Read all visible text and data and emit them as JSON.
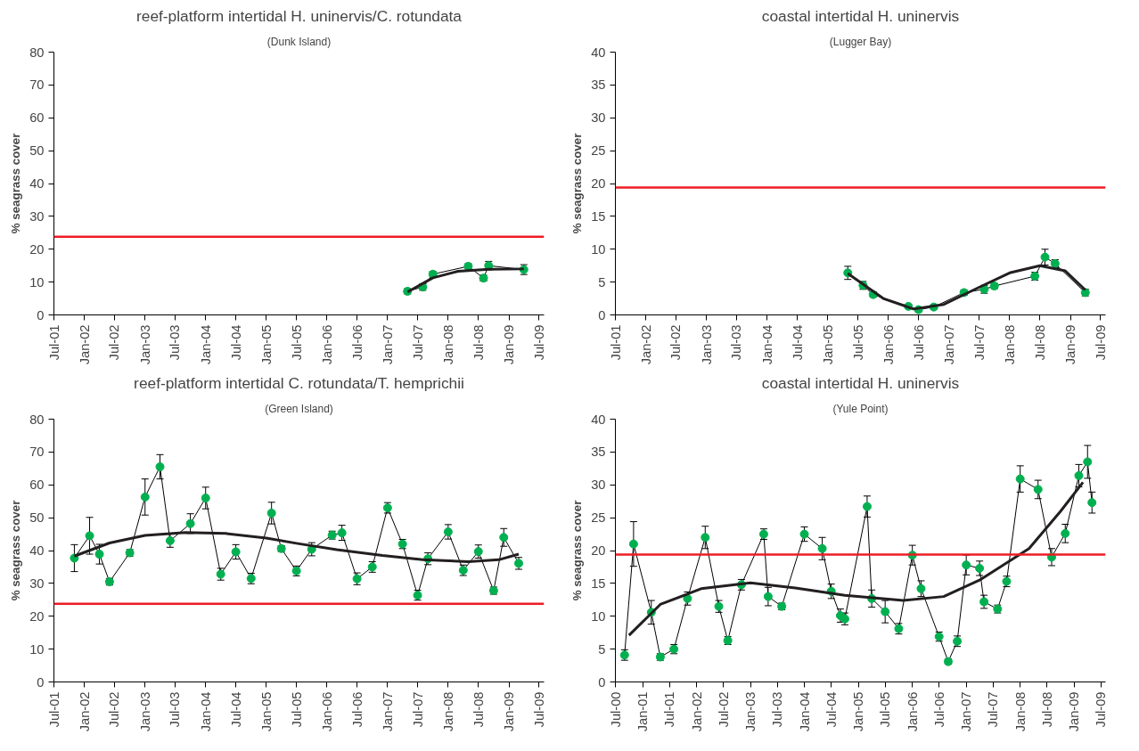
{
  "chart_data": [
    {
      "type": "line",
      "title": "reef-platform intertidal H. uninervis/C. rotundata",
      "subtitle": "(Dunk Island)",
      "ylabel": "% seagrass cover",
      "xlim": [
        "2001-07",
        "2009-08"
      ],
      "ylim": [
        0,
        80
      ],
      "yticks": [
        0,
        10,
        20,
        30,
        40,
        50,
        60,
        70,
        80
      ],
      "xticks": [
        {
          "value": "2001-07",
          "label": "Jul-01"
        },
        {
          "value": "2002-01",
          "label": "Jan-02"
        },
        {
          "value": "2002-07",
          "label": "Jul-02"
        },
        {
          "value": "2003-01",
          "label": "Jan-03"
        },
        {
          "value": "2003-07",
          "label": "Jul-03"
        },
        {
          "value": "2004-01",
          "label": "Jan-04"
        },
        {
          "value": "2004-07",
          "label": "Jul-04"
        },
        {
          "value": "2005-01",
          "label": "Jan-05"
        },
        {
          "value": "2005-07",
          "label": "Jul-05"
        },
        {
          "value": "2006-01",
          "label": "Jan-06"
        },
        {
          "value": "2006-07",
          "label": "Jul-06"
        },
        {
          "value": "2007-01",
          "label": "Jan-07"
        },
        {
          "value": "2007-07",
          "label": "Jul-07"
        },
        {
          "value": "2008-01",
          "label": "Jan-08"
        },
        {
          "value": "2008-07",
          "label": "Jul-08"
        },
        {
          "value": "2009-01",
          "label": "Jan-09"
        },
        {
          "value": "2009-07",
          "label": "Jul-09"
        }
      ],
      "grid": false,
      "ref_lines": [
        {
          "axis": "y",
          "value": 23.8,
          "color": "#ed1c24"
        }
      ],
      "series": [
        {
          "type": "line",
          "color": "#00b050",
          "marker": "circle",
          "x": [
            "2007-05",
            "2007-08",
            "2007-10",
            "2008-05",
            "2008-08",
            "2008-09",
            "2009-04"
          ],
          "values": [
            7.2,
            8.5,
            12.4,
            14.8,
            11.2,
            15.0,
            13.8
          ],
          "errors": [
            0.8,
            1,
            0.8,
            0.8,
            0.9,
            1.3,
            1.5
          ]
        },
        {
          "type": "line",
          "color": "#231f20",
          "marker": "none",
          "x": [
            "2007-05",
            "2007-10",
            "2008-03",
            "2008-09",
            "2009-04"
          ],
          "values": [
            7.0,
            11.3,
            13.3,
            13.9,
            14.0
          ]
        }
      ]
    },
    {
      "type": "line",
      "title": "coastal intertidal H. uninervis",
      "subtitle": "(Lugger Bay)",
      "ylabel": "% seagrass cover",
      "xlim": [
        "2001-07",
        "2009-08"
      ],
      "ylim": [
        0,
        40
      ],
      "yticks": [
        0,
        5,
        10,
        15,
        20,
        25,
        30,
        35,
        40
      ],
      "xticks": [
        {
          "value": "2001-07",
          "label": "Jul-01"
        },
        {
          "value": "2002-01",
          "label": "Jan-02"
        },
        {
          "value": "2002-07",
          "label": "Jul-02"
        },
        {
          "value": "2003-01",
          "label": "Jan-03"
        },
        {
          "value": "2003-07",
          "label": "Jul-03"
        },
        {
          "value": "2004-01",
          "label": "Jan-04"
        },
        {
          "value": "2004-07",
          "label": "Jul-04"
        },
        {
          "value": "2005-01",
          "label": "Jan-05"
        },
        {
          "value": "2005-07",
          "label": "Jul-05"
        },
        {
          "value": "2006-01",
          "label": "Jan-06"
        },
        {
          "value": "2006-07",
          "label": "Jul-06"
        },
        {
          "value": "2007-01",
          "label": "Jan-07"
        },
        {
          "value": "2007-07",
          "label": "Jul-07"
        },
        {
          "value": "2008-01",
          "label": "Jan-08"
        },
        {
          "value": "2008-07",
          "label": "Jul-08"
        },
        {
          "value": "2009-01",
          "label": "Jan-09"
        },
        {
          "value": "2009-07",
          "label": "Jul-09"
        }
      ],
      "grid": false,
      "ref_lines": [
        {
          "axis": "y",
          "value": 19.4,
          "color": "#ed1c24"
        }
      ],
      "series": [
        {
          "type": "line",
          "color": "#00b050",
          "marker": "circle",
          "x": [
            "2005-05",
            "2005-08",
            "2005-10",
            "2006-05",
            "2006-07",
            "2006-10",
            "2007-04",
            "2007-08",
            "2007-10",
            "2008-06",
            "2008-08",
            "2008-10",
            "2009-04"
          ],
          "values": [
            6.4,
            4.5,
            3.1,
            1.3,
            0.8,
            1.2,
            3.4,
            3.9,
            4.4,
            5.9,
            8.8,
            7.8,
            3.4
          ],
          "errors": [
            1,
            0.6,
            0.4,
            0.3,
            0.3,
            0.3,
            0.4,
            0.6,
            0.4,
            0.6,
            1.2,
            0.6,
            0.5
          ]
        },
        {
          "type": "line",
          "color": "#231f20",
          "marker": "none",
          "x": [
            "2005-05",
            "2005-12",
            "2006-06",
            "2006-12",
            "2007-07",
            "2008-01",
            "2008-07",
            "2008-12",
            "2009-04"
          ],
          "values": [
            6.3,
            2.5,
            0.9,
            1.6,
            4.2,
            6.4,
            7.5,
            6.7,
            3.8
          ]
        }
      ]
    },
    {
      "type": "line",
      "title": "reef-platform intertidal C. rotundata/T. hemprichii",
      "subtitle": "(Green Island)",
      "ylabel": "% seagrass cover",
      "xlim": [
        "2001-07",
        "2009-08"
      ],
      "ylim": [
        0,
        80
      ],
      "yticks": [
        0,
        10,
        20,
        30,
        40,
        50,
        60,
        70,
        80
      ],
      "xticks": [
        {
          "value": "2001-07",
          "label": "Jul-01"
        },
        {
          "value": "2002-01",
          "label": "Jan-02"
        },
        {
          "value": "2002-07",
          "label": "Jul-02"
        },
        {
          "value": "2003-01",
          "label": "Jan-03"
        },
        {
          "value": "2003-07",
          "label": "Jul-03"
        },
        {
          "value": "2004-01",
          "label": "Jan-04"
        },
        {
          "value": "2004-07",
          "label": "Jul-04"
        },
        {
          "value": "2005-01",
          "label": "Jan-05"
        },
        {
          "value": "2005-07",
          "label": "Jul-05"
        },
        {
          "value": "2006-01",
          "label": "Jan-06"
        },
        {
          "value": "2006-07",
          "label": "Jul-06"
        },
        {
          "value": "2007-01",
          "label": "Jan-07"
        },
        {
          "value": "2007-07",
          "label": "Jul-07"
        },
        {
          "value": "2008-01",
          "label": "Jan-08"
        },
        {
          "value": "2008-07",
          "label": "Jul-08"
        },
        {
          "value": "2009-01",
          "label": "Jan-09"
        },
        {
          "value": "2009-07",
          "label": "Jul-09"
        }
      ],
      "grid": false,
      "ref_lines": [
        {
          "axis": "y",
          "value": 23.8,
          "color": "#ed1c24"
        }
      ],
      "series": [
        {
          "type": "line",
          "color": "#00b050",
          "marker": "circle",
          "x": [
            "2001-11",
            "2002-02",
            "2002-04",
            "2002-06",
            "2002-10",
            "2003-01",
            "2003-04",
            "2003-06",
            "2003-10",
            "2004-01",
            "2004-04",
            "2004-07",
            "2004-10",
            "2005-02",
            "2005-04",
            "2005-07",
            "2005-10",
            "2006-02",
            "2006-04",
            "2006-07",
            "2006-10",
            "2007-01",
            "2007-04",
            "2007-07",
            "2007-09",
            "2008-01",
            "2008-04",
            "2008-07",
            "2008-10",
            "2008-12",
            "2009-03"
          ],
          "values": [
            37.7,
            44.5,
            38.9,
            30.5,
            39.3,
            56.3,
            65.5,
            43.0,
            48.2,
            56.0,
            32.8,
            39.6,
            31.5,
            51.4,
            40.6,
            33.8,
            40.4,
            44.7,
            45.4,
            31.4,
            35.0,
            53.0,
            42.0,
            26.4,
            37.5,
            45.7,
            34.0,
            39.7,
            27.8,
            44.0,
            36.1
          ],
          "errors": [
            4.1,
            5.6,
            3,
            1,
            1,
            5.5,
            3.7,
            2,
            3,
            3.3,
            1.8,
            2.2,
            1.6,
            3.3,
            0.9,
            1.5,
            2,
            1.2,
            2.3,
            1.8,
            1.6,
            1.6,
            1.4,
            1.5,
            1.8,
            2.2,
            1.6,
            2,
            1.1,
            2.7,
            1.8
          ]
        },
        {
          "type": "line",
          "color": "#231f20",
          "marker": "none",
          "x": [
            "2001-11",
            "2002-06",
            "2003-01",
            "2003-09",
            "2004-05",
            "2005-01",
            "2005-07",
            "2006-03",
            "2006-12",
            "2007-08",
            "2008-05",
            "2008-11",
            "2009-03"
          ],
          "values": [
            38.3,
            42.3,
            44.6,
            45.5,
            45.2,
            43.8,
            42.2,
            40.3,
            38.5,
            37.2,
            36.6,
            37.2,
            38.9
          ]
        }
      ]
    },
    {
      "type": "line",
      "title": "coastal intertidal H. uninervis",
      "subtitle": "(Yule Point)",
      "ylabel": "% seagrass cover",
      "xlim": [
        "2000-07",
        "2009-08"
      ],
      "ylim": [
        0,
        40
      ],
      "yticks": [
        0,
        5,
        10,
        15,
        20,
        25,
        30,
        35,
        40
      ],
      "xticks": [
        {
          "value": "2000-07",
          "label": "Jul-00"
        },
        {
          "value": "2001-01",
          "label": "Jan-01"
        },
        {
          "value": "2001-07",
          "label": "Jul-01"
        },
        {
          "value": "2002-01",
          "label": "Jan-02"
        },
        {
          "value": "2002-07",
          "label": "Jul-02"
        },
        {
          "value": "2003-01",
          "label": "Jan-03"
        },
        {
          "value": "2003-07",
          "label": "Jul-03"
        },
        {
          "value": "2004-01",
          "label": "Jan-04"
        },
        {
          "value": "2004-07",
          "label": "Jul-04"
        },
        {
          "value": "2005-01",
          "label": "Jan-05"
        },
        {
          "value": "2005-07",
          "label": "Jul-05"
        },
        {
          "value": "2006-01",
          "label": "Jan-06"
        },
        {
          "value": "2006-07",
          "label": "Jul-06"
        },
        {
          "value": "2007-01",
          "label": "Jan-07"
        },
        {
          "value": "2007-07",
          "label": "Jul-07"
        },
        {
          "value": "2008-01",
          "label": "Jan-08"
        },
        {
          "value": "2008-07",
          "label": "Jul-08"
        },
        {
          "value": "2009-01",
          "label": "Jan-09"
        },
        {
          "value": "2009-07",
          "label": "Jul-09"
        }
      ],
      "grid": false,
      "ref_lines": [
        {
          "axis": "y",
          "value": 19.4,
          "color": "#ed1c24"
        }
      ],
      "series": [
        {
          "type": "line",
          "color": "#00b050",
          "marker": "circle",
          "x": [
            "2000-09",
            "2000-11",
            "2001-03",
            "2001-05",
            "2001-08",
            "2001-11",
            "2002-03",
            "2002-06",
            "2002-08",
            "2002-11",
            "2003-04",
            "2003-05",
            "2003-08",
            "2004-01",
            "2004-05",
            "2004-07",
            "2004-09",
            "2004-10",
            "2005-03",
            "2005-04",
            "2005-07",
            "2005-10",
            "2006-01",
            "2006-03",
            "2006-07",
            "2006-09",
            "2006-11",
            "2007-01",
            "2007-04",
            "2007-05",
            "2007-08",
            "2007-10",
            "2008-01",
            "2008-05",
            "2008-08",
            "2008-11",
            "2009-02",
            "2009-04",
            "2009-05"
          ],
          "values": [
            4.1,
            21.0,
            10.6,
            3.8,
            5.0,
            12.7,
            22.0,
            11.5,
            6.3,
            14.8,
            22.5,
            13.0,
            11.5,
            22.5,
            20.3,
            13.8,
            10.1,
            9.6,
            26.7,
            12.7,
            10.7,
            8.1,
            19.3,
            14.2,
            6.9,
            3.1,
            6.2,
            17.8,
            17.3,
            12.2,
            11.1,
            15.3,
            30.9,
            29.3,
            19.0,
            22.6,
            31.4,
            33.5,
            27.3
          ],
          "errors": [
            0.8,
            3.4,
            1.8,
            0.5,
            0.7,
            1,
            1.7,
            0.9,
            0.6,
            0.8,
            0.8,
            1.4,
            0.5,
            1.1,
            1.7,
            1.1,
            1,
            0.9,
            1.6,
            1.3,
            1.7,
            0.8,
            1.5,
            1.2,
            0.7,
            0.4,
            0.8,
            1.5,
            1.1,
            1,
            0.6,
            0.8,
            2,
            1.4,
            1.3,
            1.4,
            1.7,
            2.5,
            1.6
          ]
        },
        {
          "type": "line",
          "color": "#231f20",
          "marker": "none",
          "x": [
            "2000-10",
            "2001-05",
            "2002-02",
            "2003-01",
            "2003-11",
            "2004-10",
            "2005-11",
            "2006-08",
            "2007-04",
            "2008-03",
            "2008-10",
            "2009-03"
          ],
          "values": [
            7.1,
            11.8,
            14.2,
            15.1,
            14.3,
            13.2,
            12.4,
            13.0,
            15.5,
            20.3,
            26.0,
            30.4
          ]
        }
      ]
    }
  ]
}
